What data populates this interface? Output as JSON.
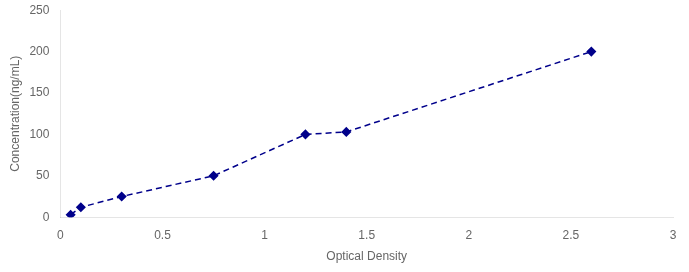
{
  "chart_data": {
    "type": "line",
    "x": [
      0.05,
      0.1,
      0.3,
      0.75,
      1.2,
      1.4,
      2.6
    ],
    "values": [
      3,
      12,
      25,
      50,
      100,
      103,
      200
    ],
    "color": "#00008B",
    "marker": "diamond",
    "line_style": "dashed",
    "xlabel": "Optical Density",
    "ylabel": "Concentration(ng/mL)",
    "xlim": [
      0,
      3
    ],
    "ylim": [
      0,
      250
    ],
    "xticks": [
      0,
      0.5,
      1,
      1.5,
      2,
      2.5,
      3
    ],
    "yticks": [
      0,
      50,
      100,
      150,
      200,
      250
    ],
    "grid": false
  }
}
